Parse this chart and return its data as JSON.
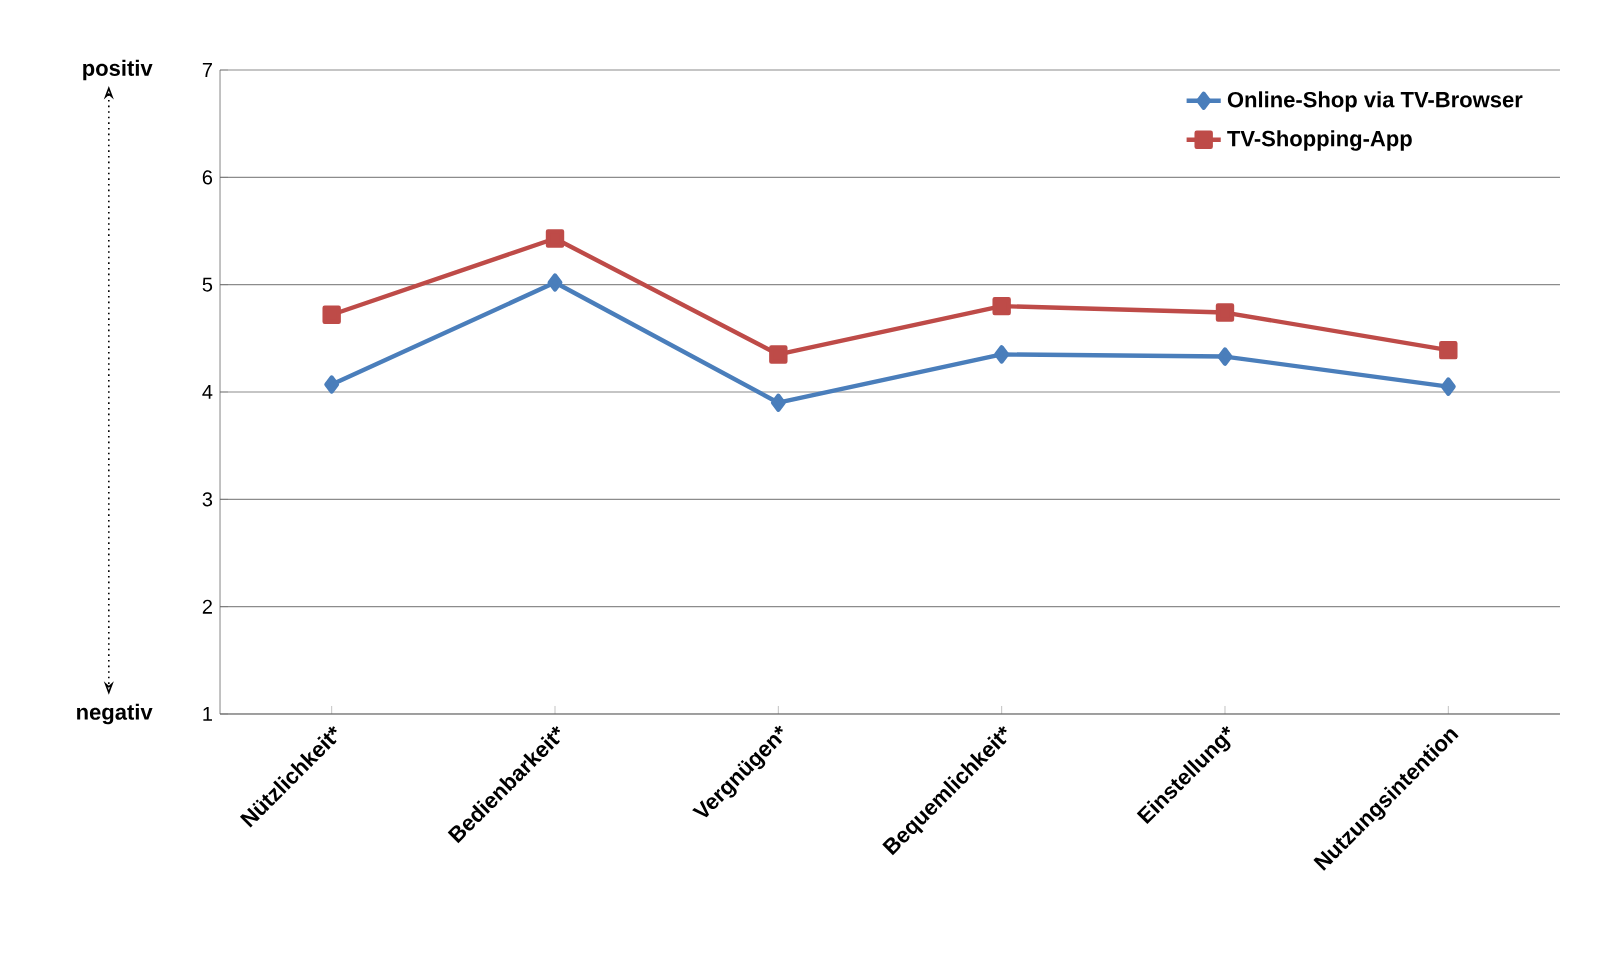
{
  "chart_data": {
    "type": "line",
    "categories": [
      "Nützlichkeit*",
      "Bedienbarkeit*",
      "Vergnügen*",
      "Bequemlichkeit*",
      "Einstellung*",
      "Nutzungsintention"
    ],
    "series": [
      {
        "name": "Online-Shop via TV-Browser",
        "color": "#4a7ebb",
        "marker": "diamond",
        "values": [
          4.07,
          5.02,
          3.9,
          4.35,
          4.33,
          4.05
        ]
      },
      {
        "name": "TV-Shopping-App",
        "color": "#be4b48",
        "marker": "square",
        "values": [
          4.72,
          5.43,
          4.35,
          4.8,
          4.74,
          4.39
        ]
      }
    ],
    "ylim": [
      1,
      7
    ],
    "yticks": [
      1,
      2,
      3,
      4,
      5,
      6,
      7
    ],
    "grid": "y",
    "legend": "top right",
    "line_style": "solid",
    "annotations": [
      "positiv",
      "negativ"
    ]
  }
}
